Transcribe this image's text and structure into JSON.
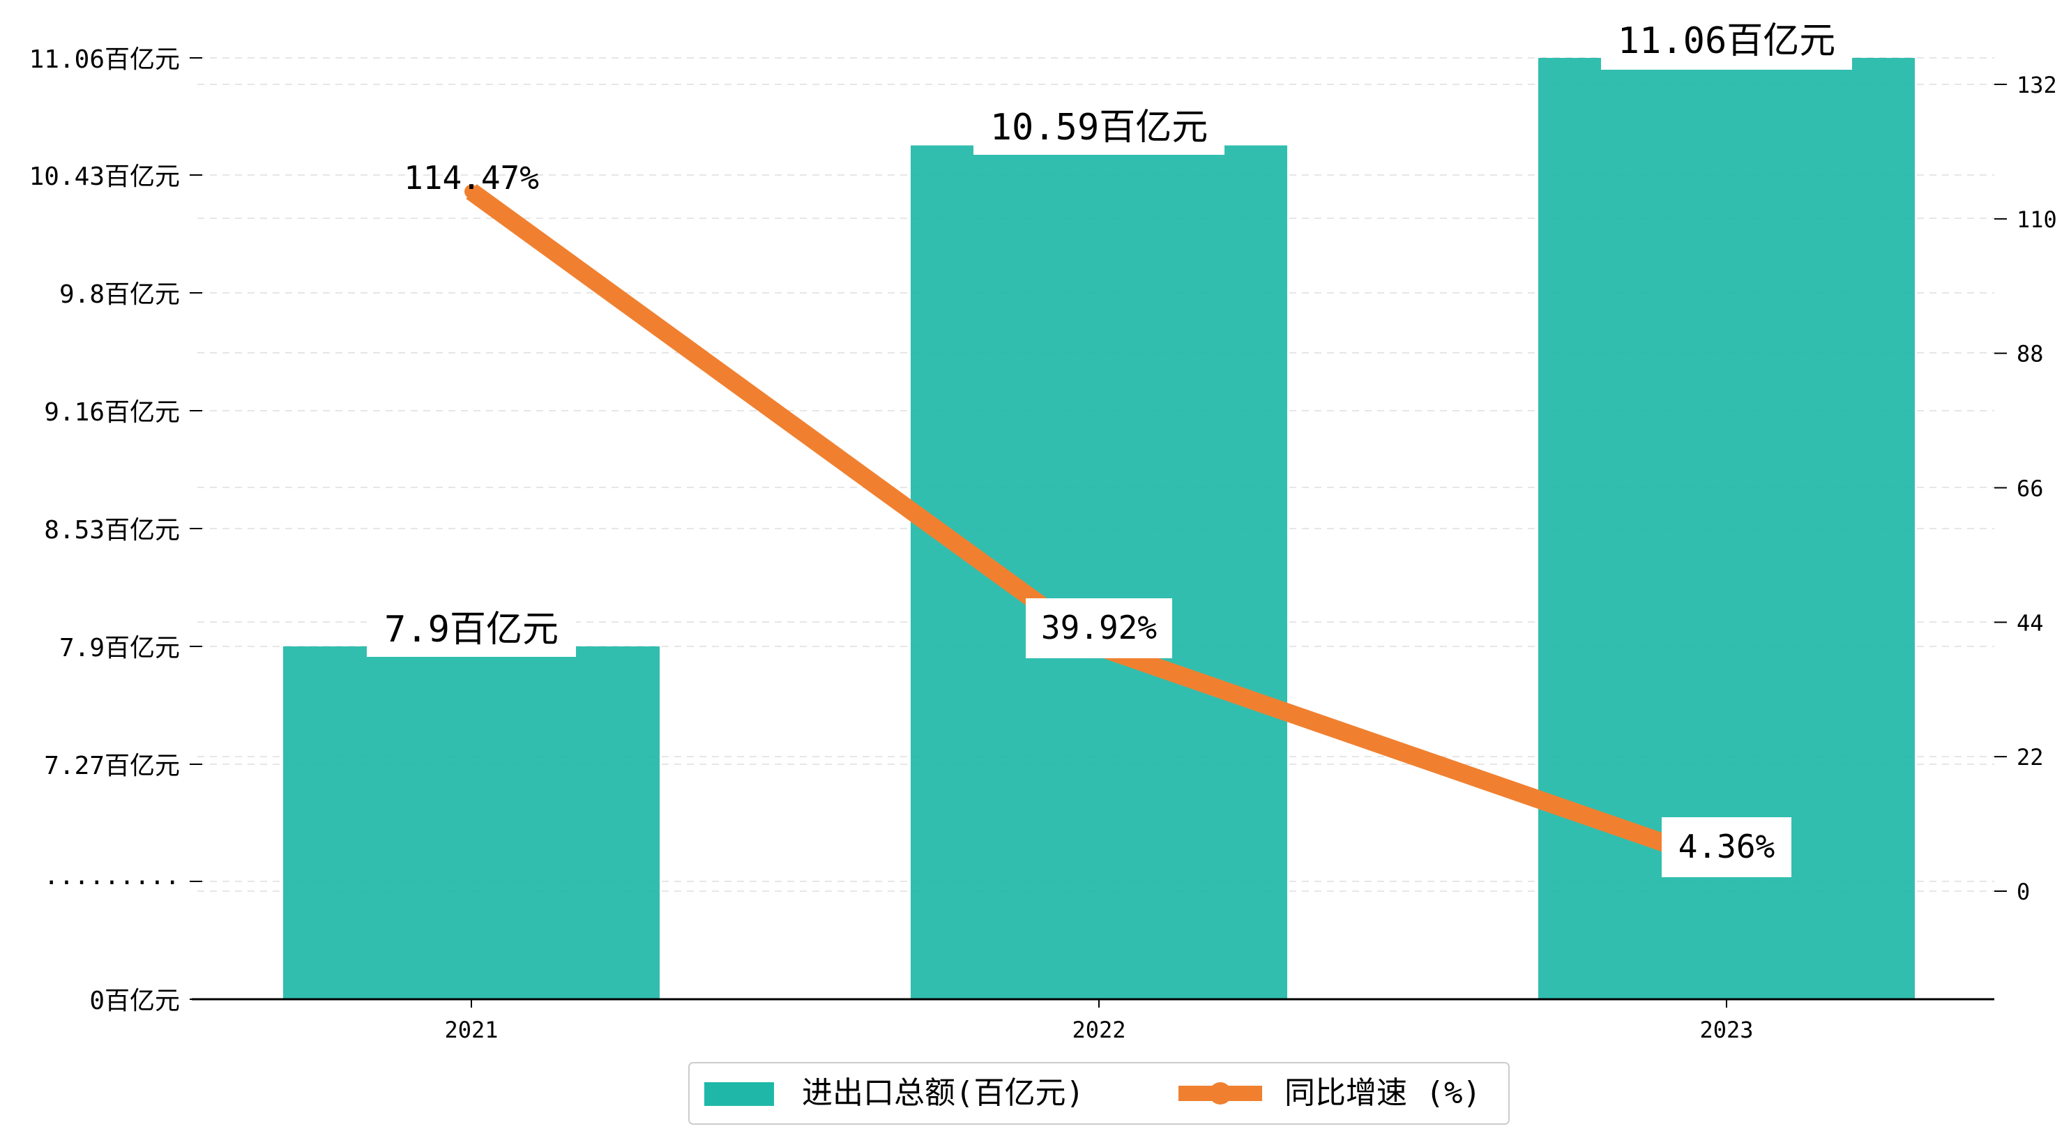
{
  "chart_data": {
    "type": "bar",
    "categories": [
      "2021",
      "2022",
      "2023"
    ],
    "series": [
      {
        "name": "进出口总额(百亿元)",
        "type": "bar",
        "values": [
          7.9,
          10.59,
          11.06
        ],
        "labels": [
          "7.9百亿元",
          "10.59百亿元",
          "11.06百亿元"
        ],
        "color": "#1fb8a8"
      },
      {
        "name": "同比增速 (%)",
        "type": "line",
        "values": [
          114.47,
          39.92,
          4.36
        ],
        "labels": [
          "114.47%",
          "39.92%",
          "4.36%"
        ],
        "color": "#f08030"
      }
    ],
    "left_axis": {
      "tick_labels": [
        "0百亿元",
        "·········",
        "7.27百亿元",
        "7.9百亿元",
        "8.53百亿元",
        "9.16百亿元",
        "9.8百亿元",
        "10.43百亿元",
        "11.06百亿元"
      ]
    },
    "right_axis": {
      "ticks": [
        0,
        22,
        44,
        66,
        88,
        110,
        132
      ],
      "tick_labels": [
        "0",
        "22",
        "44",
        "66",
        "88",
        "110",
        "132"
      ],
      "ylim": [
        -17.6,
        137.7
      ]
    },
    "grid": true,
    "legend": "bottom-center"
  }
}
